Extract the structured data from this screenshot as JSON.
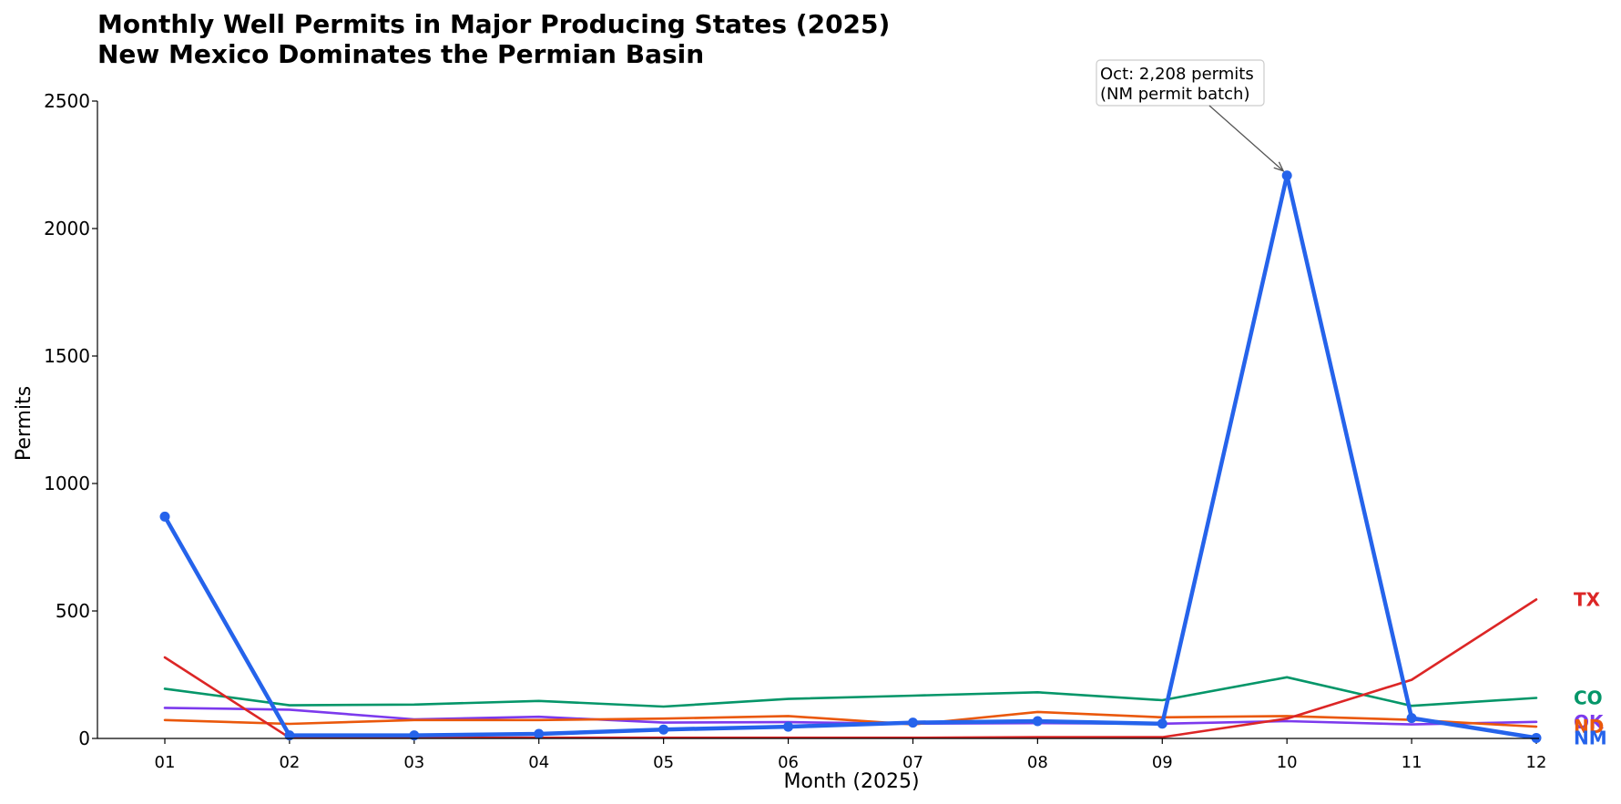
{
  "chart_data": {
    "type": "line",
    "title_lines": [
      "Monthly Well Permits in Major Producing States (2025)",
      "New Mexico Dominates the Permian Basin"
    ],
    "xlabel": "Month (2025)",
    "ylabel": "Permits",
    "categories": [
      "01",
      "02",
      "03",
      "04",
      "05",
      "06",
      "07",
      "08",
      "09",
      "10",
      "11",
      "12"
    ],
    "ylim": [
      0,
      2500
    ],
    "yticks": [
      0,
      500,
      1000,
      1500,
      2000,
      2500
    ],
    "grid": false,
    "legend": "end-of-line labels at right",
    "series": [
      {
        "name": "CO",
        "color": "#059669",
        "emphasis": false,
        "values": [
          195,
          130,
          133,
          147,
          125,
          155,
          168,
          181,
          150,
          240,
          128,
          159
        ]
      },
      {
        "name": "OK",
        "color": "#7c3aed",
        "emphasis": false,
        "values": [
          120,
          113,
          75,
          85,
          62,
          64,
          58,
          60,
          58,
          68,
          55,
          65
        ]
      },
      {
        "name": "ND",
        "color": "#ea580c",
        "emphasis": false,
        "values": [
          72,
          57,
          72,
          72,
          78,
          88,
          55,
          104,
          83,
          88,
          73,
          46
        ]
      },
      {
        "name": "TX",
        "color": "#dc2626",
        "emphasis": false,
        "values": [
          318,
          3,
          3,
          3,
          3,
          3,
          3,
          5,
          5,
          78,
          230,
          545
        ]
      },
      {
        "name": "NM",
        "color": "#2563eb",
        "emphasis": true,
        "values": [
          870,
          12,
          12,
          18,
          35,
          46,
          62,
          68,
          58,
          2208,
          80,
          2
        ]
      }
    ],
    "annotation": {
      "lines": [
        "Oct: 2,208 permits",
        "(NM permit batch)"
      ],
      "target_category": "10",
      "target_value": 2208
    }
  }
}
